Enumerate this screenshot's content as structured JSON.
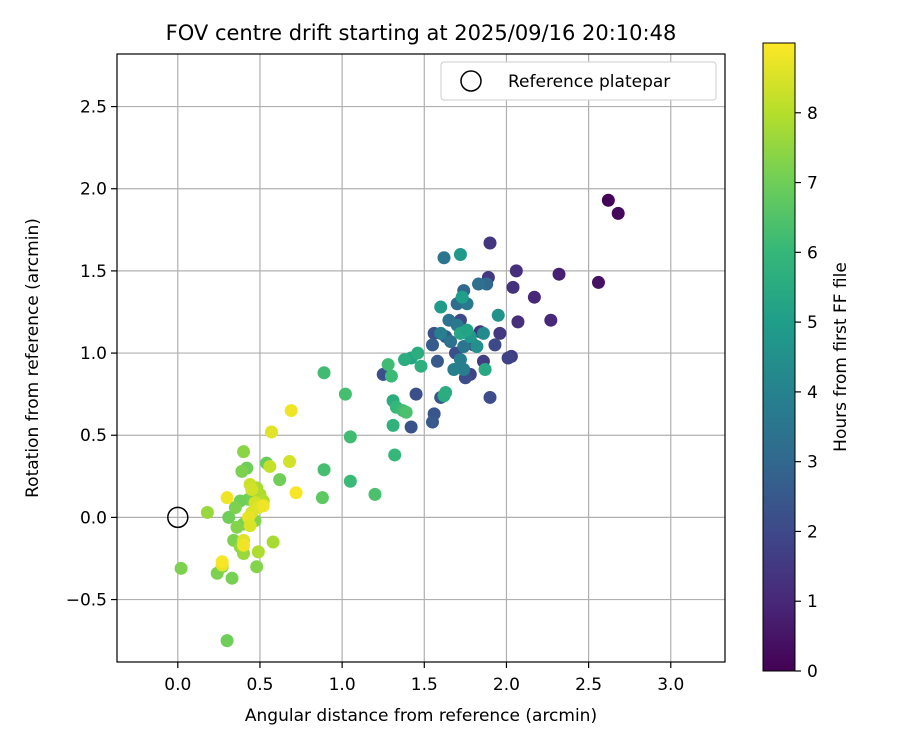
{
  "chart_data": {
    "type": "scatter",
    "title": "FOV centre drift starting at 2025/09/16 20:10:48",
    "xlabel": "Angular distance from reference (arcmin)",
    "ylabel": "Rotation from reference (arcmin)",
    "xlim": [
      -0.37,
      3.33
    ],
    "ylim": [
      -0.88,
      2.82
    ],
    "xticks": [
      "0.0",
      "0.5",
      "1.0",
      "1.5",
      "2.0",
      "2.5",
      "3.0"
    ],
    "yticks": [
      "−0.5",
      "0.0",
      "0.5",
      "1.0",
      "1.5",
      "2.0",
      "2.5"
    ],
    "grid": true,
    "legend": {
      "position": "top-right",
      "entries": [
        "Reference platepar"
      ]
    },
    "reference_point": {
      "x": 0.0,
      "y": 0.0
    },
    "colorbar": {
      "label": "Hours from first FF file",
      "range": [
        0,
        9
      ],
      "ticks": [
        "0",
        "1",
        "2",
        "3",
        "4",
        "5",
        "6",
        "7",
        "8"
      ],
      "colormap": "viridis"
    },
    "points": [
      [
        2.62,
        1.93,
        0.1
      ],
      [
        2.68,
        1.85,
        0.2
      ],
      [
        2.56,
        1.43,
        0.4
      ],
      [
        2.32,
        1.48,
        0.8
      ],
      [
        2.27,
        1.2,
        1.0
      ],
      [
        2.17,
        1.34,
        1.0
      ],
      [
        2.06,
        1.5,
        1.2
      ],
      [
        2.04,
        1.4,
        1.3
      ],
      [
        2.07,
        1.19,
        1.2
      ],
      [
        1.9,
        1.67,
        1.4
      ],
      [
        1.89,
        1.46,
        1.5
      ],
      [
        1.96,
        1.12,
        1.5
      ],
      [
        2.03,
        0.98,
        1.6
      ],
      [
        2.01,
        0.97,
        1.8
      ],
      [
        1.93,
        1.05,
        2.0
      ],
      [
        1.9,
        0.73,
        2.1
      ],
      [
        1.84,
        1.13,
        1.4
      ],
      [
        1.86,
        0.95,
        1.6
      ],
      [
        1.8,
        1.05,
        2.0
      ],
      [
        1.78,
        0.87,
        1.8
      ],
      [
        1.75,
        0.85,
        2.1
      ],
      [
        1.72,
        1.2,
        2.0
      ],
      [
        1.69,
        1.0,
        2.2
      ],
      [
        1.63,
        1.1,
        2.5
      ],
      [
        1.6,
        0.73,
        2.4
      ],
      [
        1.58,
        0.95,
        2.5
      ],
      [
        1.56,
        1.12,
        2.3
      ],
      [
        1.55,
        1.05,
        2.6
      ],
      [
        1.56,
        0.63,
        2.4
      ],
      [
        1.55,
        0.58,
        2.5
      ],
      [
        1.45,
        0.75,
        2.2
      ],
      [
        1.42,
        0.55,
        2.3
      ],
      [
        1.25,
        0.87,
        2.2
      ],
      [
        1.88,
        1.42,
        3.0
      ],
      [
        1.83,
        1.42,
        3.3
      ],
      [
        1.74,
        1.38,
        3.0
      ],
      [
        1.7,
        1.3,
        3.2
      ],
      [
        1.65,
        1.2,
        3.4
      ],
      [
        1.62,
        1.58,
        3.5
      ],
      [
        1.66,
        1.07,
        3.4
      ],
      [
        1.76,
        1.3,
        3.7
      ],
      [
        1.7,
        1.17,
        3.6
      ],
      [
        1.74,
        1.04,
        3.5
      ],
      [
        1.72,
        0.96,
        3.9
      ],
      [
        1.74,
        0.9,
        3.8
      ],
      [
        1.68,
        0.9,
        3.9
      ],
      [
        1.6,
        1.12,
        3.9
      ],
      [
        1.95,
        1.23,
        4.6
      ],
      [
        1.86,
        1.12,
        4.3
      ],
      [
        1.82,
        1.04,
        4.5
      ],
      [
        1.78,
        1.1,
        4.8
      ],
      [
        1.72,
        1.6,
        4.8
      ],
      [
        1.6,
        1.28,
        4.9
      ],
      [
        1.73,
        1.34,
        5.0
      ],
      [
        1.72,
        1.12,
        5.3
      ],
      [
        1.76,
        1.14,
        5.2
      ],
      [
        1.87,
        0.9,
        5.4
      ],
      [
        1.62,
        0.74,
        5.5
      ],
      [
        1.63,
        0.76,
        5.6
      ],
      [
        1.42,
        0.97,
        5.3
      ],
      [
        1.46,
        1.0,
        5.6
      ],
      [
        1.48,
        0.92,
        5.7
      ],
      [
        1.38,
        0.96,
        5.6
      ],
      [
        1.31,
        0.71,
        5.6
      ],
      [
        1.31,
        0.56,
        5.8
      ],
      [
        1.32,
        0.38,
        6.0
      ],
      [
        1.33,
        0.67,
        6.0
      ],
      [
        1.37,
        0.65,
        6.2
      ],
      [
        1.39,
        0.64,
        6.4
      ],
      [
        1.3,
        0.86,
        6.1
      ],
      [
        1.28,
        0.93,
        6.2
      ],
      [
        0.89,
        0.88,
        6.2
      ],
      [
        1.02,
        0.75,
        6.3
      ],
      [
        1.05,
        0.49,
        6.2
      ],
      [
        1.05,
        0.22,
        6.1
      ],
      [
        1.2,
        0.14,
        6.4
      ],
      [
        0.89,
        0.29,
        6.3
      ],
      [
        0.88,
        0.12,
        6.7
      ],
      [
        0.62,
        0.23,
        7.0
      ],
      [
        0.54,
        0.33,
        6.9
      ],
      [
        0.42,
        0.3,
        7.0
      ],
      [
        0.39,
        0.28,
        7.2
      ],
      [
        0.4,
        0.4,
        7.4
      ],
      [
        0.43,
        0.11,
        7.1
      ],
      [
        0.38,
        0.1,
        7.0
      ],
      [
        0.35,
        0.06,
        7.2
      ],
      [
        0.31,
        0.0,
        7.0
      ],
      [
        0.45,
        -0.02,
        7.1
      ],
      [
        0.4,
        -0.04,
        7.1
      ],
      [
        0.36,
        -0.06,
        7.3
      ],
      [
        0.47,
        -0.02,
        7.3
      ],
      [
        0.34,
        -0.14,
        7.2
      ],
      [
        0.38,
        -0.18,
        7.5
      ],
      [
        0.4,
        -0.22,
        7.6
      ],
      [
        0.27,
        -0.3,
        7.4
      ],
      [
        0.24,
        -0.34,
        7.2
      ],
      [
        0.33,
        -0.37,
        7.1
      ],
      [
        0.48,
        -0.3,
        7.3
      ],
      [
        0.3,
        -0.75,
        7.0
      ],
      [
        0.02,
        -0.31,
        7.2
      ],
      [
        0.18,
        0.03,
        7.6
      ],
      [
        0.49,
        -0.21,
        7.9
      ],
      [
        0.58,
        -0.15,
        7.8
      ],
      [
        0.48,
        0.18,
        7.8
      ],
      [
        0.5,
        0.14,
        7.9
      ],
      [
        0.52,
        0.1,
        8.0
      ],
      [
        0.56,
        0.31,
        8.2
      ],
      [
        0.44,
        0.2,
        8.3
      ],
      [
        0.45,
        0.17,
        8.4
      ],
      [
        0.47,
        0.09,
        8.4
      ],
      [
        0.45,
        0.03,
        8.5
      ],
      [
        0.49,
        0.06,
        8.6
      ],
      [
        0.52,
        0.07,
        8.8
      ],
      [
        0.43,
        0.0,
        8.7
      ],
      [
        0.44,
        -0.05,
        8.5
      ],
      [
        0.4,
        -0.14,
        8.6
      ],
      [
        0.4,
        -0.17,
        8.8
      ],
      [
        0.27,
        -0.29,
        8.7
      ],
      [
        0.3,
        0.12,
        8.8
      ],
      [
        0.57,
        0.52,
        8.6
      ],
      [
        0.68,
        0.34,
        8.4
      ],
      [
        0.69,
        0.65,
        8.8
      ],
      [
        0.72,
        0.15,
        8.9
      ],
      [
        0.27,
        -0.27,
        8.9
      ]
    ]
  }
}
